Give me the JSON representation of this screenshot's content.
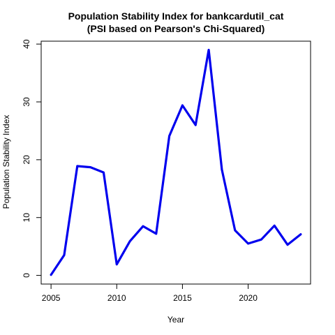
{
  "chart_data": {
    "type": "line",
    "title": "Population Stability Index for bankcardutil_cat",
    "subtitle": "(PSI based on Pearson's Chi-Squared)",
    "xlabel": "Year",
    "ylabel": "Population Stability Index",
    "xlim": [
      2004.25,
      2024.75
    ],
    "ylim": [
      -1.5,
      40.5
    ],
    "xticks": [
      2005,
      2010,
      2015,
      2020
    ],
    "yticks": [
      0,
      10,
      20,
      30,
      40
    ],
    "grid": false,
    "legend": "none",
    "series": [
      {
        "color": "#0000ee",
        "x": [
          2005,
          2006,
          2007,
          2008,
          2009,
          2010,
          2011,
          2012,
          2013,
          2014,
          2015,
          2016,
          2017,
          2018,
          2019,
          2020,
          2021,
          2022,
          2023,
          2024
        ],
        "y": [
          0.1,
          3.5,
          18.9,
          18.7,
          17.8,
          1.9,
          5.9,
          8.5,
          7.2,
          24.1,
          29.4,
          26.0,
          39.0,
          18.3,
          7.8,
          5.5,
          6.2,
          8.6,
          5.3,
          7.1
        ]
      }
    ]
  }
}
